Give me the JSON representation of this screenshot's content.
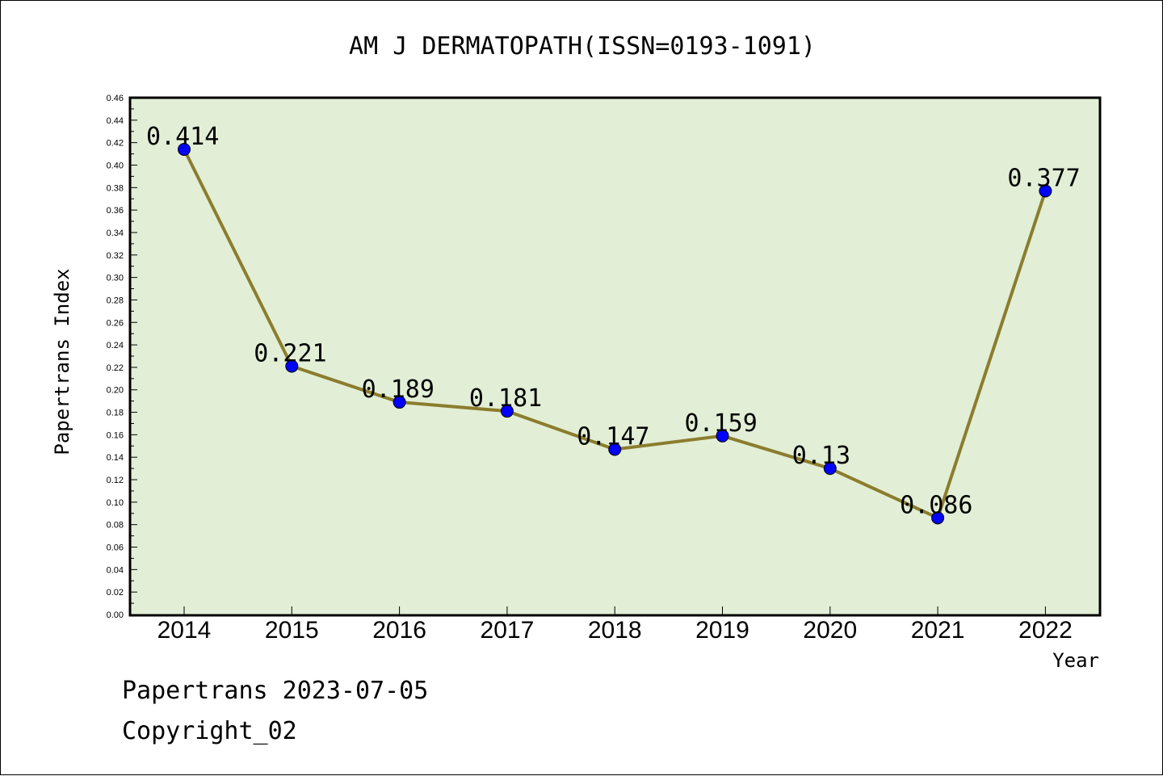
{
  "chart_data": {
    "type": "line",
    "title": "AM J DERMATOPATH(ISSN=0193-1091)",
    "xlabel": "Year",
    "ylabel": "Papertrans Index",
    "categories": [
      "2014",
      "2015",
      "2016",
      "2017",
      "2018",
      "2019",
      "2020",
      "2021",
      "2022"
    ],
    "values": [
      0.414,
      0.221,
      0.189,
      0.181,
      0.147,
      0.159,
      0.13,
      0.086,
      0.377
    ],
    "data_labels": [
      "0.414",
      "0.221",
      "0.189",
      "0.181",
      "0.147",
      "0.159",
      "0.13",
      "0.086",
      "0.377"
    ],
    "ylim": [
      0,
      0.46
    ],
    "y_ticks": [
      "0.00",
      "0.02",
      "0.04",
      "0.06",
      "0.08",
      "0.10",
      "0.12",
      "0.14",
      "0.16",
      "0.18",
      "0.20",
      "0.22",
      "0.24",
      "0.26",
      "0.28",
      "0.30",
      "0.32",
      "0.34",
      "0.36",
      "0.38",
      "0.40",
      "0.42",
      "0.44",
      "0.46"
    ],
    "grid": false,
    "colors": {
      "plot_background": "#e2efd6",
      "line": "#8b7d2e",
      "marker": "#0000ff"
    }
  },
  "footer": {
    "line1": "Papertrans 2023-07-05",
    "line2": "Copyright_02"
  }
}
